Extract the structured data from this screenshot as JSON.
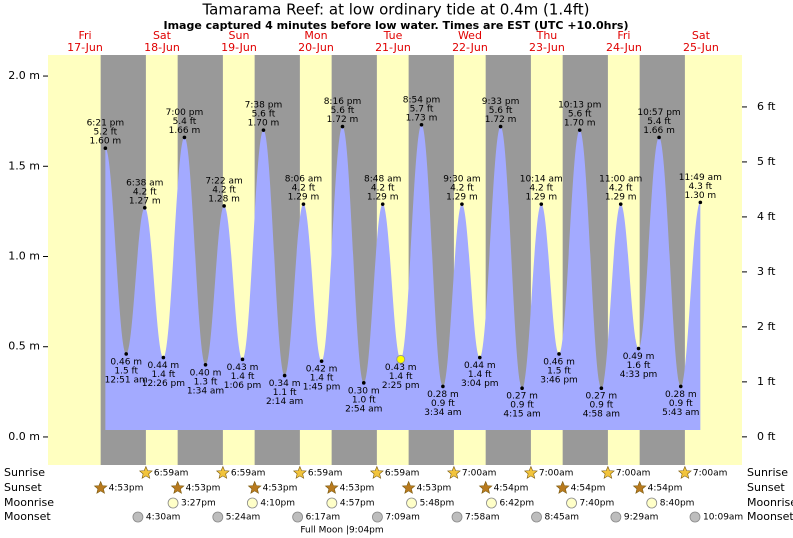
{
  "chart_data": {
    "type": "tide",
    "title": "Tamarama Reef: at low  ordinary tide at 0.4m (1.4ft)",
    "subtitle": "Image captured 4 minutes before low water. Times are EST (UTC +10.0hrs)",
    "days": [
      "Fri",
      "Sat",
      "Sun",
      "Mon",
      "Tue",
      "Wed",
      "Thu",
      "Fri",
      "Sat"
    ],
    "dates": [
      "17-Jun",
      "18-Jun",
      "19-Jun",
      "20-Jun",
      "21-Jun",
      "22-Jun",
      "23-Jun",
      "24-Jun",
      "25-Jun"
    ],
    "ylim": [
      -0.1,
      2.1
    ],
    "yticks": [
      {
        "value": 0,
        "label": "0.0 m"
      },
      {
        "value": 0.5,
        "label": "0.5 m"
      },
      {
        "value": 1,
        "label": "1.0 m"
      },
      {
        "value": 1.5,
        "label": "1.5 m"
      },
      {
        "value": 2,
        "label": "2.0 m"
      }
    ],
    "y2lim": [
      -0.33,
      6.89
    ],
    "y2ticks": [
      {
        "value": 0,
        "label": "0 ft"
      },
      {
        "value": 1,
        "label": "1 ft"
      },
      {
        "value": 2,
        "label": "2 ft"
      },
      {
        "value": 3,
        "label": "3 ft"
      },
      {
        "value": 4,
        "label": "4 ft"
      },
      {
        "value": 5,
        "label": "5 ft"
      },
      {
        "value": 6,
        "label": "6 ft"
      }
    ],
    "color": "#a3aaff",
    "events": [
      {
        "time": "6:21 pm",
        "height": 1.6,
        "height_label": "1.60 m",
        "ft_label": "5.2 ft"
      },
      {
        "time": "12:51 am",
        "height": 0.46,
        "height_label": "0.46 m",
        "ft_label": "1.5 ft"
      },
      {
        "time": "6:38 am",
        "height": 1.27,
        "height_label": "1.27 m",
        "ft_label": "4.2 ft"
      },
      {
        "time": "12:26 pm",
        "height": 0.44,
        "height_label": "0.44 m",
        "ft_label": "1.4 ft"
      },
      {
        "time": "7:00 pm",
        "height": 1.66,
        "height_label": "1.66 m",
        "ft_label": "5.4 ft"
      },
      {
        "time": "1:34 am",
        "height": 0.4,
        "height_label": "0.40 m",
        "ft_label": "1.3 ft"
      },
      {
        "time": "7:22 am",
        "height": 1.28,
        "height_label": "1.28 m",
        "ft_label": "4.2 ft"
      },
      {
        "time": "1:06 pm",
        "height": 0.43,
        "height_label": "0.43 m",
        "ft_label": "1.4 ft"
      },
      {
        "time": "7:38 pm",
        "height": 1.7,
        "height_label": "1.70 m",
        "ft_label": "5.6 ft"
      },
      {
        "time": "2:14 am",
        "height": 0.34,
        "height_label": "0.34 m",
        "ft_label": "1.1 ft"
      },
      {
        "time": "8:06 am",
        "height": 1.29,
        "height_label": "1.29 m",
        "ft_label": "4.2 ft"
      },
      {
        "time": "1:45 pm",
        "height": 0.42,
        "height_label": "0.42 m",
        "ft_label": "1.4 ft"
      },
      {
        "time": "8:16 pm",
        "height": 1.72,
        "height_label": "1.72 m",
        "ft_label": "5.6 ft"
      },
      {
        "time": "2:54 am",
        "height": 0.3,
        "height_label": "0.30 m",
        "ft_label": "1.0 ft"
      },
      {
        "time": "8:48 am",
        "height": 1.29,
        "height_label": "1.29 m",
        "ft_label": "4.2 ft"
      },
      {
        "time": "2:25 pm",
        "height": 0.43,
        "height_label": "0.43 m",
        "ft_label": "1.4 ft",
        "now": true
      },
      {
        "time": "8:54 pm",
        "height": 1.73,
        "height_label": "1.73 m",
        "ft_label": "5.7 ft"
      },
      {
        "time": "3:34 am",
        "height": 0.28,
        "height_label": "0.28 m",
        "ft_label": "0.9 ft"
      },
      {
        "time": "9:30 am",
        "height": 1.29,
        "height_label": "1.29 m",
        "ft_label": "4.2 ft"
      },
      {
        "time": "3:04 pm",
        "height": 0.44,
        "height_label": "0.44 m",
        "ft_label": "1.4 ft"
      },
      {
        "time": "9:33 pm",
        "height": 1.72,
        "height_label": "1.72 m",
        "ft_label": "5.6 ft"
      },
      {
        "time": "4:15 am",
        "height": 0.27,
        "height_label": "0.27 m",
        "ft_label": "0.9 ft"
      },
      {
        "time": "10:14 am",
        "height": 1.29,
        "height_label": "1.29 m",
        "ft_label": "4.2 ft"
      },
      {
        "time": "3:46 pm",
        "height": 0.46,
        "height_label": "0.46 m",
        "ft_label": "1.5 ft"
      },
      {
        "time": "10:13 pm",
        "height": 1.7,
        "height_label": "1.70 m",
        "ft_label": "5.6 ft"
      },
      {
        "time": "4:58 am",
        "height": 0.27,
        "height_label": "0.27 m",
        "ft_label": "0.9 ft"
      },
      {
        "time": "11:00 am",
        "height": 1.29,
        "height_label": "1.29 m",
        "ft_label": "4.2 ft"
      },
      {
        "time": "4:33 pm",
        "height": 0.49,
        "height_label": "0.49 m",
        "ft_label": "1.6 ft"
      },
      {
        "time": "10:57 pm",
        "height": 1.66,
        "height_label": "1.66 m",
        "ft_label": "5.4 ft"
      },
      {
        "time": "5:43 am",
        "height": 0.28,
        "height_label": "0.28 m",
        "ft_label": "0.9 ft"
      },
      {
        "time": "11:49 am",
        "height": 1.3,
        "height_label": "1.30 m",
        "ft_label": "4.3 ft"
      }
    ],
    "rows": [
      {
        "name": "Sunrise",
        "times": [
          null,
          "6:59am",
          "6:59am",
          "6:59am",
          "6:59am",
          "7:00am",
          "7:00am",
          "7:00am",
          "7:00am"
        ]
      },
      {
        "name": "Sunset",
        "times": [
          "4:53pm",
          "4:53pm",
          "4:53pm",
          "4:53pm",
          "4:53pm",
          "4:54pm",
          "4:54pm",
          "4:54pm",
          null
        ]
      },
      {
        "name": "Moonrise",
        "times": [
          null,
          "3:27pm",
          "4:10pm",
          "4:57pm",
          "5:48pm",
          "6:42pm",
          "7:40pm",
          "8:40pm",
          null
        ]
      },
      {
        "name": "Moonset",
        "times": [
          null,
          "4:30am",
          "5:24am",
          "6:17am",
          "7:09am",
          "7:58am",
          "8:45am",
          "9:29am",
          "10:09am"
        ]
      }
    ],
    "moon_phase": "Full Moon |9:04pm"
  }
}
